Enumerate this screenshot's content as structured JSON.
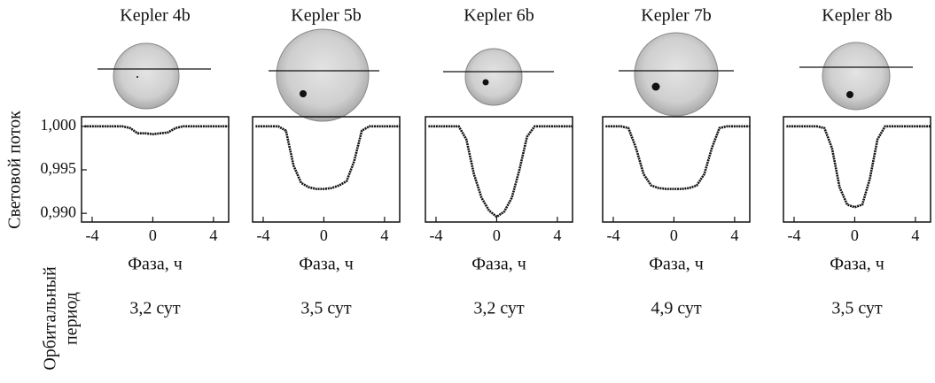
{
  "y_label": "Световой поток",
  "period_label": [
    "Орбитальный",
    "период"
  ],
  "chart_data": [
    {
      "type": "line",
      "title": "Kepler 4b",
      "xlabel": "Фаза, ч",
      "period": "3,2 сут",
      "x": [
        -4.5,
        -4,
        -3.5,
        -3,
        -2.5,
        -2,
        -1.5,
        -1,
        -0.5,
        0,
        0.5,
        1,
        1.5,
        2,
        2.5,
        3,
        3.5,
        4,
        4.5,
        5
      ],
      "values": [
        1.0,
        1.0,
        1.0,
        1.0,
        1.0,
        1.0,
        0.9998,
        0.9992,
        0.9992,
        0.9991,
        0.9992,
        0.9993,
        0.9998,
        1.0,
        1.0,
        1.0,
        1.0,
        1.0,
        1.0,
        1.0
      ],
      "color": "#111111",
      "xlim": [
        -4.7,
        5
      ],
      "ylim": [
        0.989,
        1.0011
      ],
      "xticks": [
        -4,
        0,
        4
      ],
      "yticks": [
        {
          "value": 1.0,
          "label": "1,000"
        },
        {
          "value": 0.995,
          "label": "0,995"
        },
        {
          "value": 0.99,
          "label": "0,990"
        }
      ]
    },
    {
      "type": "line",
      "title": "Kepler 5b",
      "xlabel": "Фаза, ч",
      "period": "3,5 сут",
      "x": [
        -4.5,
        -4,
        -3.5,
        -3,
        -2.5,
        -2,
        -1.5,
        -1,
        -0.5,
        0,
        0.5,
        1,
        1.5,
        2,
        2.5,
        3,
        3.5,
        4,
        4.5,
        5
      ],
      "values": [
        1.0,
        1.0,
        1.0,
        1.0,
        0.9995,
        0.9955,
        0.9935,
        0.993,
        0.9928,
        0.9928,
        0.9929,
        0.9932,
        0.9937,
        0.996,
        0.9995,
        1.0,
        1.0,
        1.0,
        1.0,
        1.0
      ],
      "color": "#111111",
      "xlim": [
        -4.7,
        5
      ],
      "ylim": [
        0.989,
        1.0011
      ],
      "xticks": [
        -4,
        0,
        4
      ]
    },
    {
      "type": "line",
      "title": "Kepler 6b",
      "xlabel": "Фаза, ч",
      "period": "3,2 сут",
      "x": [
        -4.5,
        -4,
        -3.5,
        -3,
        -2.5,
        -2,
        -1.5,
        -1,
        -0.5,
        0,
        0.5,
        1,
        1.5,
        2,
        2.5,
        3,
        3.5,
        4,
        4.5,
        5
      ],
      "values": [
        1.0,
        1.0,
        1.0,
        1.0,
        1.0,
        0.9985,
        0.9945,
        0.9918,
        0.9903,
        0.9896,
        0.9902,
        0.9918,
        0.995,
        0.9988,
        1.0,
        1.0,
        1.0,
        1.0,
        1.0,
        1.0
      ],
      "color": "#111111",
      "xlim": [
        -4.7,
        5
      ],
      "ylim": [
        0.989,
        1.0011
      ],
      "xticks": [
        -4,
        0,
        4
      ]
    },
    {
      "type": "line",
      "title": "Kepler 7b",
      "xlabel": "Фаза, ч",
      "period": "4,9 сут",
      "x": [
        -4.5,
        -4,
        -3.5,
        -3,
        -2.5,
        -2,
        -1.5,
        -1,
        -0.5,
        0,
        0.5,
        1,
        1.5,
        2,
        2.5,
        3,
        3.5,
        4,
        4.5,
        5
      ],
      "values": [
        1.0,
        1.0,
        1.0,
        0.9998,
        0.9975,
        0.9945,
        0.9932,
        0.9929,
        0.9928,
        0.9928,
        0.9928,
        0.9929,
        0.9932,
        0.9945,
        0.9975,
        0.9998,
        1.0,
        1.0,
        1.0,
        1.0
      ],
      "color": "#111111",
      "xlim": [
        -4.7,
        5
      ],
      "ylim": [
        0.989,
        1.0011
      ],
      "xticks": [
        -4,
        0,
        4
      ]
    },
    {
      "type": "line",
      "title": "Kepler 8b",
      "xlabel": "Фаза, ч",
      "period": "3,5 сут",
      "x": [
        -4.5,
        -4,
        -3.5,
        -3,
        -2.5,
        -2,
        -1.5,
        -1,
        -0.5,
        0,
        0.5,
        1,
        1.5,
        2,
        2.5,
        3,
        3.5,
        4,
        4.5,
        5
      ],
      "values": [
        1.0,
        1.0,
        1.0,
        1.0,
        1.0,
        0.9998,
        0.9975,
        0.993,
        0.991,
        0.9907,
        0.991,
        0.994,
        0.9985,
        1.0,
        1.0,
        1.0,
        1.0,
        1.0,
        1.0,
        1.0
      ],
      "color": "#111111",
      "xlim": [
        -4.7,
        5
      ],
      "ylim": [
        0.989,
        1.0011
      ],
      "xticks": [
        -4,
        0,
        4
      ]
    }
  ]
}
